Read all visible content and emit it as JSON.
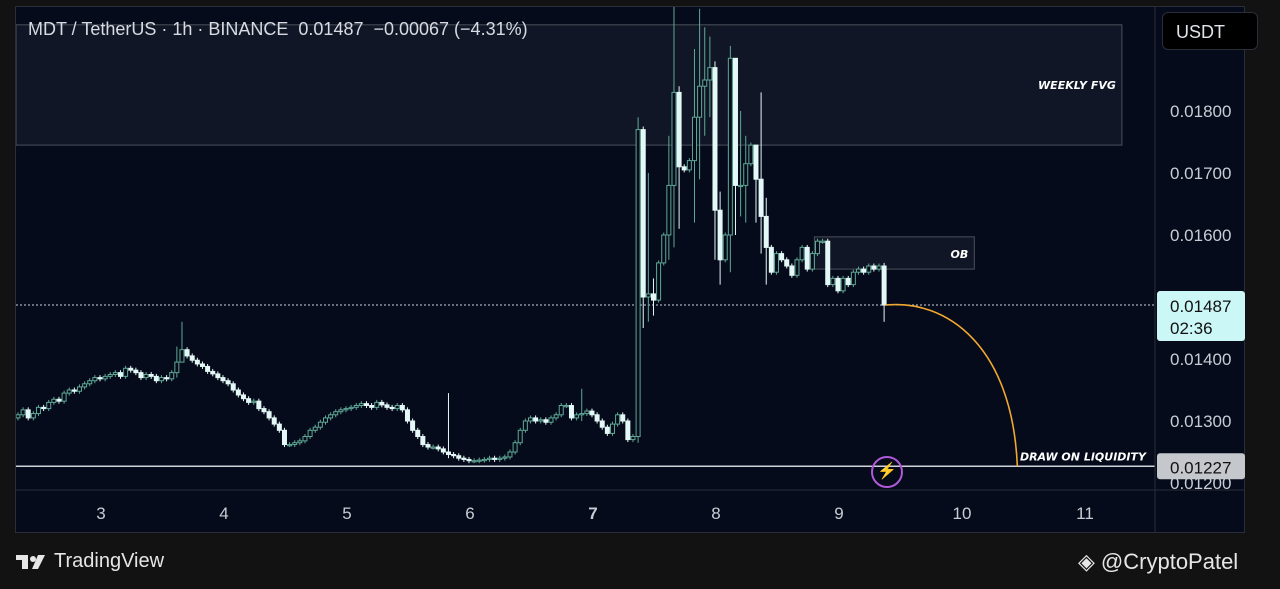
{
  "header": {
    "title": "MDT / TetherUS · 1h · BINANCE  0.01487  −0.00067 (−4.31%)"
  },
  "currency_button": "USDT",
  "footer": {
    "brand": "TradingView",
    "watermark": "@CryptoPatel"
  },
  "colors": {
    "up": "#5fa896",
    "down": "#e4f8f8",
    "last_price_bg": "#ccf7f7",
    "liquidity_bg": "#c4c7cc",
    "curve": "#f0a830",
    "bolt": "#b05ad8"
  },
  "chart_data": {
    "type": "candlestick",
    "symbol": "MDT / TetherUS",
    "interval": "1h",
    "exchange": "BINANCE",
    "x_unit": "day of month",
    "first_candle_day": 2.325,
    "candle_step_days": 0.041667,
    "xlim": [
      2.3,
      11.6
    ],
    "ylim": [
      0.01185,
      0.01965
    ],
    "x_ticks": [
      "3",
      "4",
      "5",
      "6",
      "7",
      "8",
      "9",
      "10",
      "11"
    ],
    "y_ticks": [
      "0.01800",
      "0.01700",
      "0.01600",
      "0.01400",
      "0.01300",
      "0.01200"
    ],
    "first_open": 0.01305,
    "closes_1e5": [
      1310,
      1318,
      1305,
      1312,
      1322,
      1320,
      1330,
      1335,
      1332,
      1345,
      1350,
      1348,
      1355,
      1360,
      1365,
      1370,
      1368,
      1372,
      1375,
      1378,
      1372,
      1385,
      1382,
      1378,
      1370,
      1375,
      1372,
      1365,
      1370,
      1368,
      1378,
      1395,
      1415,
      1405,
      1398,
      1392,
      1388,
      1380,
      1376,
      1370,
      1365,
      1360,
      1350,
      1342,
      1336,
      1330,
      1332,
      1320,
      1315,
      1305,
      1295,
      1285,
      1262,
      1262,
      1265,
      1268,
      1275,
      1285,
      1290,
      1298,
      1305,
      1310,
      1315,
      1318,
      1320,
      1322,
      1325,
      1328,
      1325,
      1322,
      1330,
      1326,
      1322,
      1320,
      1325,
      1318,
      1300,
      1285,
      1275,
      1262,
      1258,
      1258,
      1255,
      1250,
      1246,
      1244,
      1240,
      1238,
      1236,
      1236,
      1237,
      1238,
      1240,
      1238,
      1240,
      1242,
      1250,
      1265,
      1285,
      1300,
      1305,
      1300,
      1302,
      1298,
      1305,
      1310,
      1325,
      1325,
      1305,
      1310,
      1312,
      1316,
      1310,
      1300,
      1290,
      1280,
      1295,
      1310,
      1300,
      1270,
      1275,
      1770,
      1500,
      1505,
      1495,
      1555,
      1600,
      1680,
      1830,
      1710,
      1705,
      1720,
      1790,
      1840,
      1850,
      1870,
      1640,
      1560,
      1600,
      1885,
      1680,
      1680,
      1715,
      1745,
      1690,
      1630,
      1580,
      1540,
      1570,
      1560,
      1550,
      1535,
      1560,
      1580,
      1545,
      1570,
      1590,
      1590,
      1520,
      1530,
      1510,
      1530,
      1520,
      1540,
      1545,
      1540,
      1550,
      1545,
      1550,
      1487
    ],
    "wick_overrides_1e5": {
      "31": [
        1420,
        1370
      ],
      "32": [
        1460,
        1395
      ],
      "84": [
        1345,
        1240
      ],
      "110": [
        1352,
        1300
      ],
      "121": [
        1790,
        1265
      ],
      "122": [
        1775,
        1450
      ],
      "123": [
        1700,
        1460
      ],
      "124": [
        1530,
        1470
      ],
      "127": [
        1760,
        1560
      ],
      "128": [
        1975,
        1580
      ],
      "129": [
        1840,
        1610
      ],
      "132": [
        1900,
        1620
      ],
      "133": [
        1965,
        1690
      ],
      "134": [
        1935,
        1760
      ],
      "135": [
        1920,
        1790
      ],
      "136": [
        1880,
        1560
      ],
      "137": [
        1670,
        1520
      ],
      "139": [
        1905,
        1540
      ],
      "140": [
        1860,
        1600
      ],
      "141": [
        1800,
        1630
      ],
      "142": [
        1760,
        1620
      ],
      "144": [
        1730,
        1620
      ],
      "145": [
        1830,
        1570
      ],
      "146": [
        1660,
        1520
      ],
      "169": [
        1555,
        1460
      ]
    },
    "zones": [
      {
        "label": "WEEKLY FVG",
        "price_top": 0.01939,
        "price_bottom": 0.01745,
        "day_start": 2.1,
        "day_end": 11.3
      },
      {
        "label": "OB",
        "price_top": 0.01597,
        "price_bottom": 0.01545,
        "day_start": 8.8,
        "day_end": 10.1
      }
    ],
    "last_price": {
      "value": "0.01487",
      "countdown": "02:36",
      "price": 0.01487
    },
    "liquidity_level": {
      "label": "DRAW ON LIQUIDITY",
      "value": "0.01227",
      "price": 0.01227
    },
    "projection_curve": {
      "from": [
        9.38,
        0.01487
      ],
      "to": [
        10.45,
        0.01227
      ]
    }
  }
}
